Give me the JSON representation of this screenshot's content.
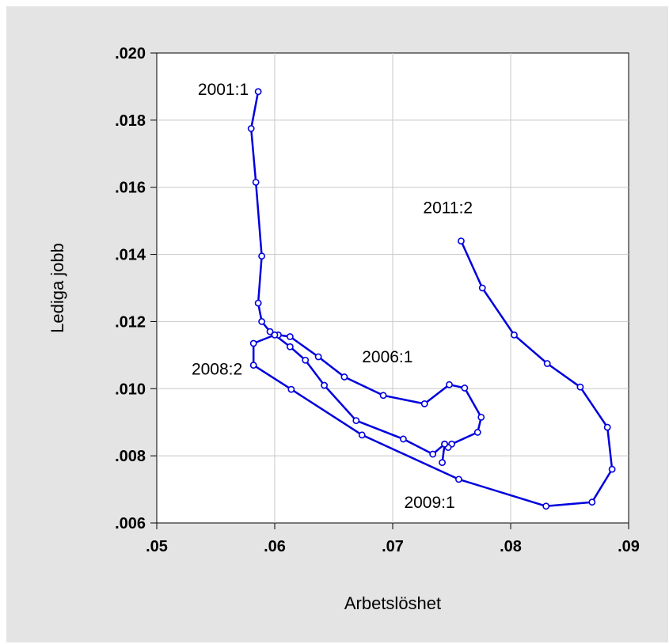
{
  "chart_data": {
    "type": "line",
    "title": "",
    "xlabel": "Arbetslöshet",
    "ylabel": "Lediga jobb",
    "xlim": [
      0.05,
      0.09
    ],
    "ylim": [
      0.006,
      0.02
    ],
    "xticks": [
      ".05",
      ".06",
      ".07",
      ".08",
      ".09"
    ],
    "yticks": [
      ".006",
      ".008",
      ".010",
      ".012",
      ".014",
      ".016",
      ".018",
      ".020"
    ],
    "grid": true,
    "colors": {
      "series": "#0000dd",
      "background": "#e4e4e4",
      "plot": "#ffffff",
      "grid": "#c8c8c8"
    },
    "series": [
      {
        "x": [
          0.0586,
          0.058,
          0.0584,
          0.0589,
          0.0586,
          0.0589,
          0.0596,
          0.0603,
          0.0613,
          0.0637,
          0.0659,
          0.0692,
          0.0727,
          0.0748,
          0.0761,
          0.0775,
          0.0772,
          0.075,
          0.0747,
          0.0744,
          0.0742,
          0.0744,
          0.0734,
          0.0709,
          0.0669,
          0.0642,
          0.0626,
          0.0613,
          0.06,
          0.0582,
          0.0582,
          0.0614,
          0.0674,
          0.0756,
          0.083,
          0.0869,
          0.0886,
          0.0882,
          0.0859,
          0.0831,
          0.0803,
          0.0776,
          0.0758
        ],
        "y": [
          0.01885,
          0.01775,
          0.01615,
          0.01395,
          0.01255,
          0.012,
          0.0117,
          0.0116,
          0.01155,
          0.01095,
          0.01035,
          0.0098,
          0.00955,
          0.01012,
          0.01002,
          0.00915,
          0.0087,
          0.00835,
          0.00825,
          0.00835,
          0.0078,
          0.00835,
          0.00805,
          0.0085,
          0.00905,
          0.0101,
          0.01085,
          0.01125,
          0.0116,
          0.01135,
          0.0107,
          0.00998,
          0.00862,
          0.0073,
          0.0065,
          0.00662,
          0.0076,
          0.00885,
          0.01005,
          0.01075,
          0.0116,
          0.013,
          0.0144
        ]
      }
    ],
    "annotations": [
      {
        "text": "2001:1",
        "x": 0.0586,
        "y": 0.01885
      },
      {
        "text": "2011:2",
        "x": 0.0758,
        "y": 0.0144
      },
      {
        "text": "2006:1",
        "x": 0.0727,
        "y": 0.01012
      },
      {
        "text": "2008:2",
        "x": 0.0582,
        "y": 0.0107
      },
      {
        "text": "2009:1",
        "x": 0.0756,
        "y": 0.0073
      }
    ]
  }
}
